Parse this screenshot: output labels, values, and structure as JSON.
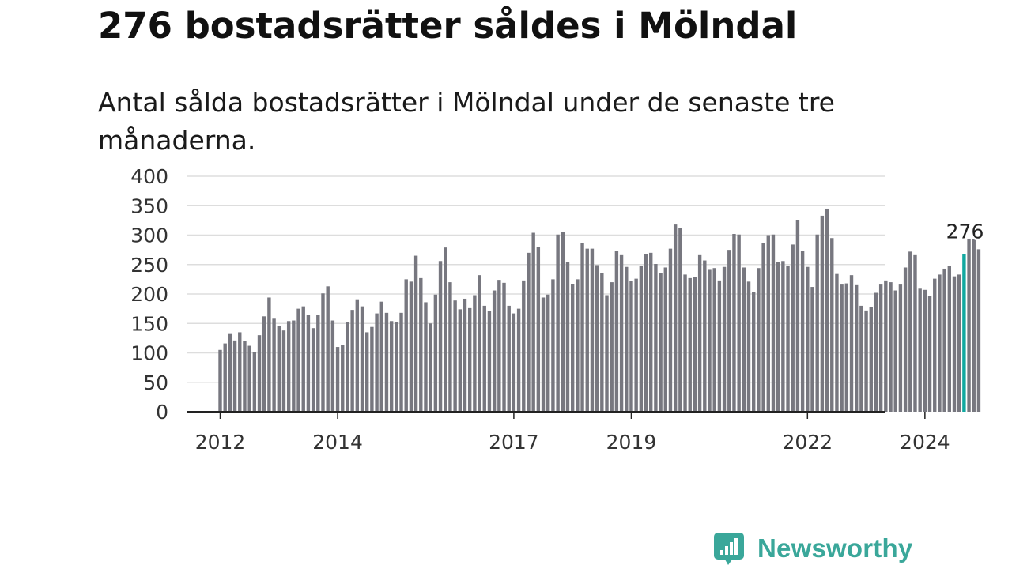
{
  "title": "276 bostadsrätter såldes i Mölndal",
  "subtitle": "Antal sålda bostadsrätter i Mölndal under de senaste tre månaderna.",
  "brand": {
    "name": "Newsworthy",
    "icon": "newsworthy-bar-chart-logo-icon",
    "color": "#3aa79a"
  },
  "colors": {
    "bar": "#77777f",
    "highlight": "#12a8a0",
    "grid": "#dddddd",
    "axis": "#222222",
    "text": "#333333"
  },
  "chart_data": {
    "type": "bar",
    "x_unit": "month",
    "x_start": "2012-01",
    "x_end": "2024-09",
    "values": [
      105,
      116,
      132,
      121,
      135,
      120,
      112,
      101,
      130,
      162,
      194,
      158,
      145,
      138,
      154,
      155,
      175,
      179,
      164,
      142,
      164,
      201,
      213,
      155,
      110,
      114,
      153,
      173,
      191,
      179,
      135,
      144,
      167,
      187,
      168,
      154,
      153,
      168,
      225,
      221,
      265,
      227,
      186,
      150,
      199,
      256,
      279,
      220,
      189,
      174,
      192,
      176,
      198,
      232,
      180,
      171,
      206,
      224,
      219,
      180,
      167,
      175,
      223,
      270,
      304,
      280,
      194,
      199,
      225,
      301,
      305,
      254,
      217,
      225,
      286,
      277,
      277,
      249,
      236,
      198,
      220,
      273,
      266,
      246,
      222,
      226,
      247,
      268,
      270,
      251,
      235,
      245,
      277,
      318,
      312,
      233,
      227,
      229,
      266,
      257,
      241,
      244,
      223,
      246,
      275,
      302,
      301,
      245,
      221,
      203,
      244,
      287,
      300,
      301,
      254,
      256,
      248,
      284,
      325,
      273,
      246,
      212,
      301,
      333,
      345,
      295,
      234,
      216,
      218,
      232,
      215,
      180,
      172,
      178,
      202,
      216,
      223,
      220,
      206,
      216,
      245,
      272,
      266,
      209,
      207,
      196,
      226,
      233,
      243,
      248,
      230,
      233,
      268,
      294,
      294,
      276
    ],
    "highlight": {
      "date": "2024-09",
      "value": 276,
      "label": "276"
    },
    "ylim": [
      0,
      400
    ],
    "yticks": [
      0,
      50,
      100,
      150,
      200,
      250,
      300,
      350,
      400
    ],
    "xticks": [
      {
        "date": "2012-01",
        "label": "2012"
      },
      {
        "date": "2014-01",
        "label": "2014"
      },
      {
        "date": "2017-01",
        "label": "2017"
      },
      {
        "date": "2019-01",
        "label": "2019"
      },
      {
        "date": "2022-01",
        "label": "2022"
      },
      {
        "date": "2024-01",
        "label": "2024"
      }
    ],
    "grid": true,
    "legend": "none"
  }
}
